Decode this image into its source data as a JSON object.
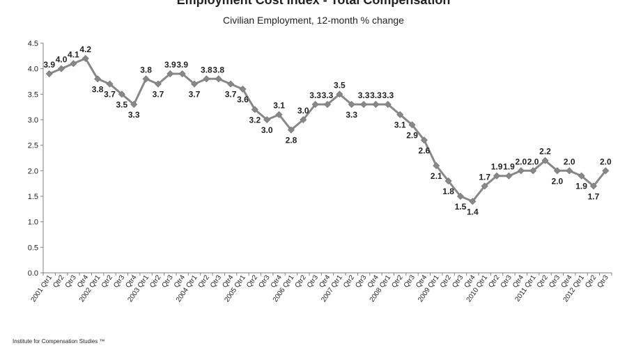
{
  "footer": {
    "source": "Institute for Compensation Studies ™"
  },
  "colors": {
    "line": "#888888",
    "marker": "#888888",
    "axis": "#7f7f7f"
  },
  "chart_data": {
    "type": "line",
    "title": "Employment Cost Index - Total Compensation",
    "subtitle": "Civilian Employment,  12-month % change",
    "xlabel": "",
    "ylabel": "",
    "ylim": [
      0,
      4.5
    ],
    "yticks": [
      "0.0",
      "0.5",
      "1.0",
      "1.5",
      "2.0",
      "2.5",
      "3.0",
      "3.5",
      "4.0",
      "4.5"
    ],
    "grid": false,
    "legend": "none",
    "categories": [
      "2001 Qtr1",
      "Qtr2",
      "Qtr3",
      "Qtr4",
      "2002 Qtr1",
      "Qtr2",
      "Qtr3",
      "Qtr4",
      "2003 Qtr1",
      "Qtr2",
      "Qtr3",
      "Qtr4",
      "2004 Qtr1",
      "Qtr2",
      "Qtr3",
      "Qtr4",
      "2005 Qtr1",
      "Qtr2",
      "Qtr3",
      "Qtr4",
      "2006 Qtr1",
      "Qtr2",
      "Qtr3",
      "Qtr4",
      "2007 Qtr1",
      "Qtr2",
      "Qtr3",
      "Qtr4",
      "2008 Qtr1",
      "Qtr2",
      "Qtr3",
      "Qtr4",
      "2009 Qtr1",
      "Qtr2",
      "Qtr3",
      "Qtr4",
      "2010 Qtr1",
      "Qtr2",
      "Qtr3",
      "Qtr4",
      "2011 Qtr1",
      "Qtr2",
      "Qtr3",
      "Qtr4",
      "2012 Qtr1",
      "Qtr2",
      "Qtr3"
    ],
    "values": [
      3.9,
      4.0,
      4.1,
      4.2,
      3.8,
      3.7,
      3.5,
      3.3,
      3.8,
      3.7,
      3.9,
      3.9,
      3.7,
      3.8,
      3.8,
      3.7,
      3.6,
      3.2,
      3.0,
      3.1,
      2.8,
      3.0,
      3.3,
      3.3,
      3.5,
      3.3,
      3.3,
      3.3,
      3.3,
      3.1,
      2.9,
      2.6,
      2.1,
      1.8,
      1.5,
      1.4,
      1.7,
      1.9,
      1.9,
      2.0,
      2.0,
      2.2,
      2.0,
      2.0,
      1.9,
      1.7,
      2.0
    ],
    "data_labels": [
      "3.9",
      "4.0",
      "4.1",
      "4.2",
      "3.8",
      "3.7",
      "3.5",
      "3.3",
      "3.8",
      "3.7",
      "3.9",
      "3.9",
      "3.7",
      "3.8",
      "3.8",
      "3.7",
      "3.6",
      "3.2",
      "3.0",
      "3.1",
      "2.8",
      "3.0",
      "3.3",
      "3.3",
      "3.5",
      "3.3",
      "3.3",
      "3.3",
      "3.3",
      "3.1",
      "2.9",
      "2.6",
      "2.1",
      "1.8",
      "1.5",
      "1.4",
      "1.7",
      "1.9",
      "1.9",
      "2.0",
      "2.0",
      "2.2",
      "2.0",
      "2.0",
      "1.9",
      "1.7",
      "2.0"
    ]
  }
}
